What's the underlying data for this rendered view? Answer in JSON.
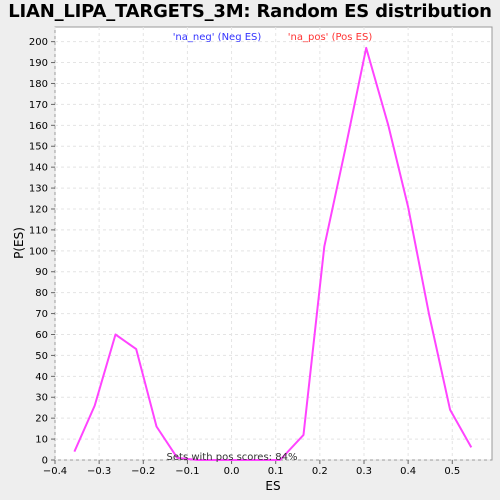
{
  "chart_data": {
    "type": "line",
    "title": "LIAN_LIPA_TARGETS_3M: Random ES distribution",
    "xlabel": "ES",
    "ylabel": "P(ES)",
    "xlim": [
      -0.4,
      0.59
    ],
    "ylim": [
      0,
      207
    ],
    "x_ticks": [
      -0.4,
      -0.3,
      -0.2,
      -0.1,
      0.0,
      0.1,
      0.2,
      0.3,
      0.4,
      0.5
    ],
    "x_tick_labels": [
      "−0.4",
      "−0.3",
      "−0.2",
      "−0.1",
      "0.0",
      "0.1",
      "0.2",
      "0.3",
      "0.4",
      "0.5"
    ],
    "y_ticks": [
      0,
      10,
      20,
      30,
      40,
      50,
      60,
      70,
      80,
      90,
      100,
      110,
      120,
      130,
      140,
      150,
      160,
      170,
      180,
      190,
      200
    ],
    "grid": true,
    "legend_position": "top-center",
    "legend": [
      {
        "label": "'na_neg' (Neg ES)",
        "color": "#3333ff"
      },
      {
        "label": "'na_pos' (Pos ES)",
        "color": "#ff3333"
      }
    ],
    "annotation": "Sets with pos scores: 84%",
    "series": [
      {
        "color": "#ff44ff",
        "x": [
          -0.356,
          -0.31,
          -0.263,
          -0.216,
          -0.17,
          -0.123,
          -0.077,
          -0.03,
          0.017,
          0.063,
          0.11,
          0.163,
          0.21,
          0.257,
          0.305,
          0.355,
          0.4,
          0.447,
          0.495,
          0.543
        ],
        "y": [
          4,
          26,
          60,
          53,
          16,
          1,
          0,
          0,
          0,
          0,
          0,
          12,
          102,
          148,
          197,
          160,
          121,
          70,
          24,
          6
        ]
      }
    ]
  }
}
